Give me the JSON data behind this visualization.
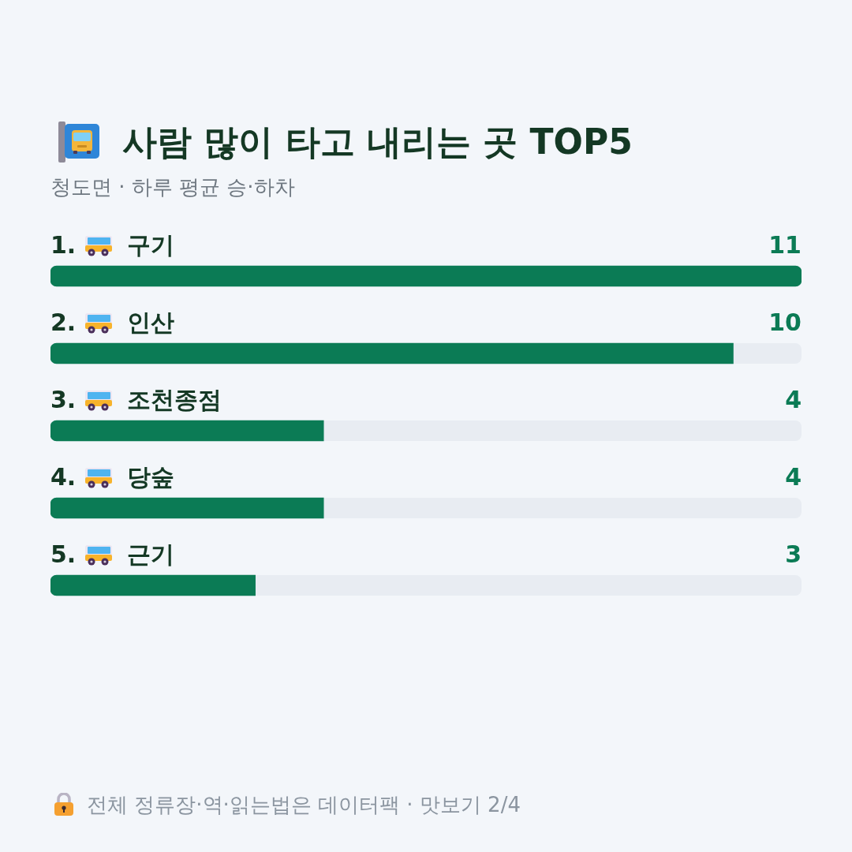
{
  "chart_data": {
    "type": "bar",
    "orientation": "horizontal",
    "title": "사람 많이 타고 내리는 곳 TOP5",
    "subtitle": "청도면 · 하루 평균 승·하차",
    "categories": [
      "1. 구기",
      "2. 인산",
      "3. 조천종점",
      "4. 당숲",
      "5. 근기"
    ],
    "values": [
      11,
      10,
      4,
      4,
      3
    ],
    "color": "#0b7b55",
    "data_labels": true,
    "annotations": [
      "전체 정류장·역·읽는법은 데이터팩 · 맛보기 2/4"
    ]
  }
}
